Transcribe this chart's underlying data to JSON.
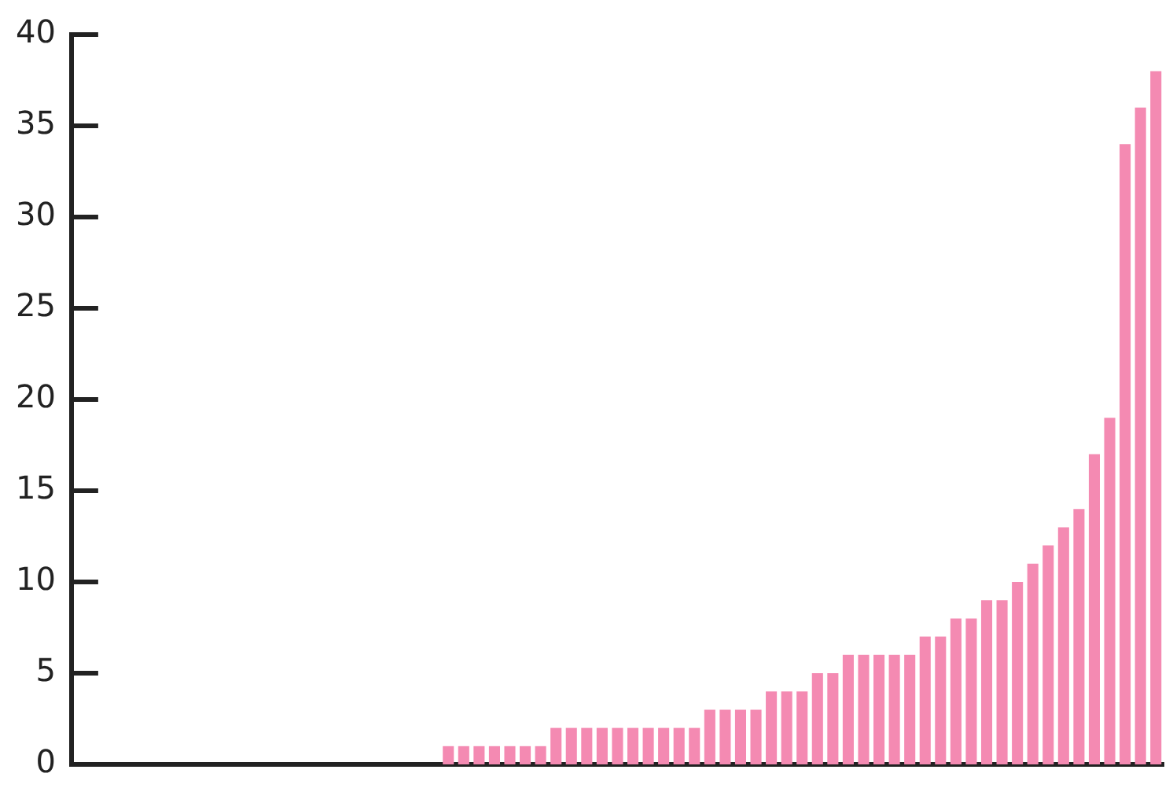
{
  "chart_data": {
    "type": "bar",
    "categories": [
      null,
      null,
      null,
      null,
      null,
      null,
      null,
      null,
      null,
      null,
      null,
      null,
      null,
      null,
      null,
      null,
      null,
      null,
      null,
      null,
      null,
      null,
      null,
      null,
      null,
      null,
      null,
      null,
      null,
      null,
      null,
      null,
      null,
      null,
      null,
      null,
      null,
      null,
      null,
      null,
      null,
      null,
      null,
      null,
      null,
      null,
      null,
      null,
      null,
      null,
      null,
      null,
      null,
      null,
      null,
      null,
      null,
      null,
      null,
      null,
      null,
      null,
      null,
      null,
      null,
      null,
      null,
      null,
      null,
      null,
      null
    ],
    "values": [
      0,
      0,
      0,
      0,
      0,
      0,
      0,
      0,
      0,
      0,
      0,
      0,
      0,
      0,
      0,
      0,
      0,
      0,
      0,
      0,
      0,
      0,
      0,
      0,
      1,
      1,
      1,
      1,
      1,
      1,
      1,
      2,
      2,
      2,
      2,
      2,
      2,
      2,
      2,
      2,
      2,
      3,
      3,
      3,
      3,
      4,
      4,
      4,
      5,
      5,
      6,
      6,
      6,
      6,
      6,
      7,
      7,
      8,
      8,
      9,
      9,
      10,
      11,
      12,
      13,
      14,
      17,
      19,
      34,
      36,
      38
    ],
    "color": "#f48ab2",
    "ylim": [
      0,
      40
    ],
    "yticks": [
      0,
      5,
      10,
      15,
      20,
      25,
      30,
      35,
      40
    ],
    "grid": false,
    "legend": false,
    "tick_labels": "y"
  }
}
